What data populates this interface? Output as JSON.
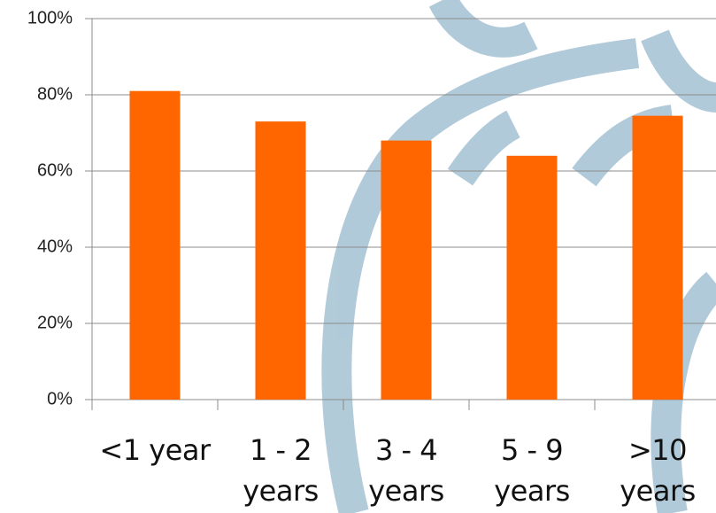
{
  "chart_data": {
    "type": "bar",
    "categories": [
      "<1 year",
      "1 - 2 years",
      "3 - 4 years",
      "5 - 9 years",
      ">10 years"
    ],
    "values": [
      81,
      73,
      68,
      64,
      74.5
    ],
    "color": "#ff6600",
    "ylim": [
      0,
      100
    ],
    "yticks": [
      {
        "value": 0,
        "label": "0%"
      },
      {
        "value": 20,
        "label": "20%"
      },
      {
        "value": 40,
        "label": "40%"
      },
      {
        "value": 60,
        "label": "60%"
      },
      {
        "value": 80,
        "label": "80%"
      },
      {
        "value": 100,
        "label": "100%"
      }
    ],
    "grid": true
  }
}
